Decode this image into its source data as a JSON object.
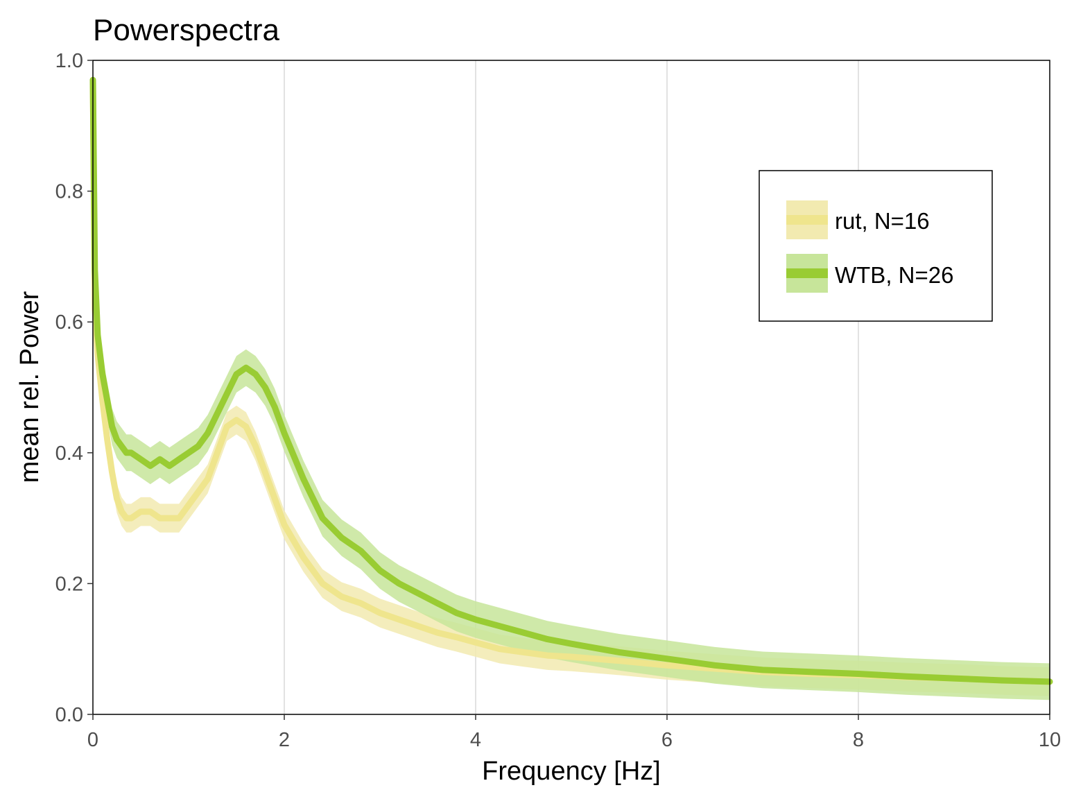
{
  "chart_data": {
    "type": "line",
    "title": "Powerspectra",
    "xlabel": "Frequency [Hz]",
    "ylabel": "mean rel. Power",
    "xlim": [
      0,
      10
    ],
    "ylim": [
      0,
      1
    ],
    "x_ticks": [
      0,
      2,
      4,
      6,
      8,
      10
    ],
    "y_ticks": [
      0.0,
      0.2,
      0.4,
      0.6,
      0.8,
      1.0
    ],
    "x_tick_labels": [
      "0",
      "2",
      "4",
      "6",
      "8",
      "10"
    ],
    "y_tick_labels": [
      "0.0",
      "0.2",
      "0.4",
      "0.6",
      "0.8",
      "1.0"
    ],
    "grid": "vertical major lines",
    "legend_position": "top-right",
    "series": [
      {
        "name": "rut, N=16",
        "color": "#efe58d",
        "band_color": "#f2eab0",
        "x": [
          0.0,
          0.02,
          0.05,
          0.1,
          0.15,
          0.2,
          0.25,
          0.3,
          0.35,
          0.4,
          0.5,
          0.6,
          0.7,
          0.8,
          0.9,
          1.0,
          1.1,
          1.2,
          1.3,
          1.4,
          1.5,
          1.6,
          1.7,
          1.8,
          1.9,
          2.0,
          2.2,
          2.4,
          2.6,
          2.8,
          3.0,
          3.2,
          3.4,
          3.6,
          3.8,
          4.0,
          4.25,
          4.5,
          4.75,
          5.0,
          5.5,
          6.0,
          6.5,
          7.0,
          7.5,
          8.0,
          8.5,
          9.0,
          9.5,
          10.0
        ],
        "y": [
          0.97,
          0.62,
          0.55,
          0.48,
          0.42,
          0.37,
          0.33,
          0.31,
          0.3,
          0.3,
          0.31,
          0.31,
          0.3,
          0.3,
          0.3,
          0.32,
          0.34,
          0.36,
          0.4,
          0.44,
          0.45,
          0.44,
          0.41,
          0.37,
          0.33,
          0.29,
          0.24,
          0.2,
          0.18,
          0.17,
          0.155,
          0.145,
          0.135,
          0.125,
          0.118,
          0.11,
          0.1,
          0.095,
          0.09,
          0.088,
          0.082,
          0.075,
          0.07,
          0.065,
          0.062,
          0.06,
          0.057,
          0.055,
          0.052,
          0.05
        ],
        "band": 0.022
      },
      {
        "name": "WTB, N=26",
        "color": "#99cc33",
        "band_color": "#c7e59a",
        "x": [
          0.0,
          0.02,
          0.05,
          0.1,
          0.15,
          0.2,
          0.25,
          0.3,
          0.35,
          0.4,
          0.5,
          0.6,
          0.7,
          0.8,
          0.9,
          1.0,
          1.1,
          1.2,
          1.3,
          1.4,
          1.5,
          1.6,
          1.7,
          1.8,
          1.9,
          2.0,
          2.2,
          2.4,
          2.6,
          2.8,
          3.0,
          3.2,
          3.4,
          3.6,
          3.8,
          4.0,
          4.25,
          4.5,
          4.75,
          5.0,
          5.5,
          6.0,
          6.5,
          7.0,
          7.5,
          8.0,
          8.5,
          9.0,
          9.5,
          10.0
        ],
        "y": [
          0.97,
          0.68,
          0.58,
          0.52,
          0.48,
          0.44,
          0.42,
          0.41,
          0.4,
          0.4,
          0.39,
          0.38,
          0.39,
          0.38,
          0.39,
          0.4,
          0.41,
          0.43,
          0.46,
          0.49,
          0.52,
          0.53,
          0.52,
          0.5,
          0.47,
          0.43,
          0.36,
          0.3,
          0.27,
          0.25,
          0.22,
          0.2,
          0.185,
          0.17,
          0.155,
          0.145,
          0.135,
          0.125,
          0.115,
          0.108,
          0.095,
          0.085,
          0.075,
          0.068,
          0.065,
          0.062,
          0.058,
          0.055,
          0.052,
          0.05
        ],
        "band": 0.028
      }
    ]
  }
}
